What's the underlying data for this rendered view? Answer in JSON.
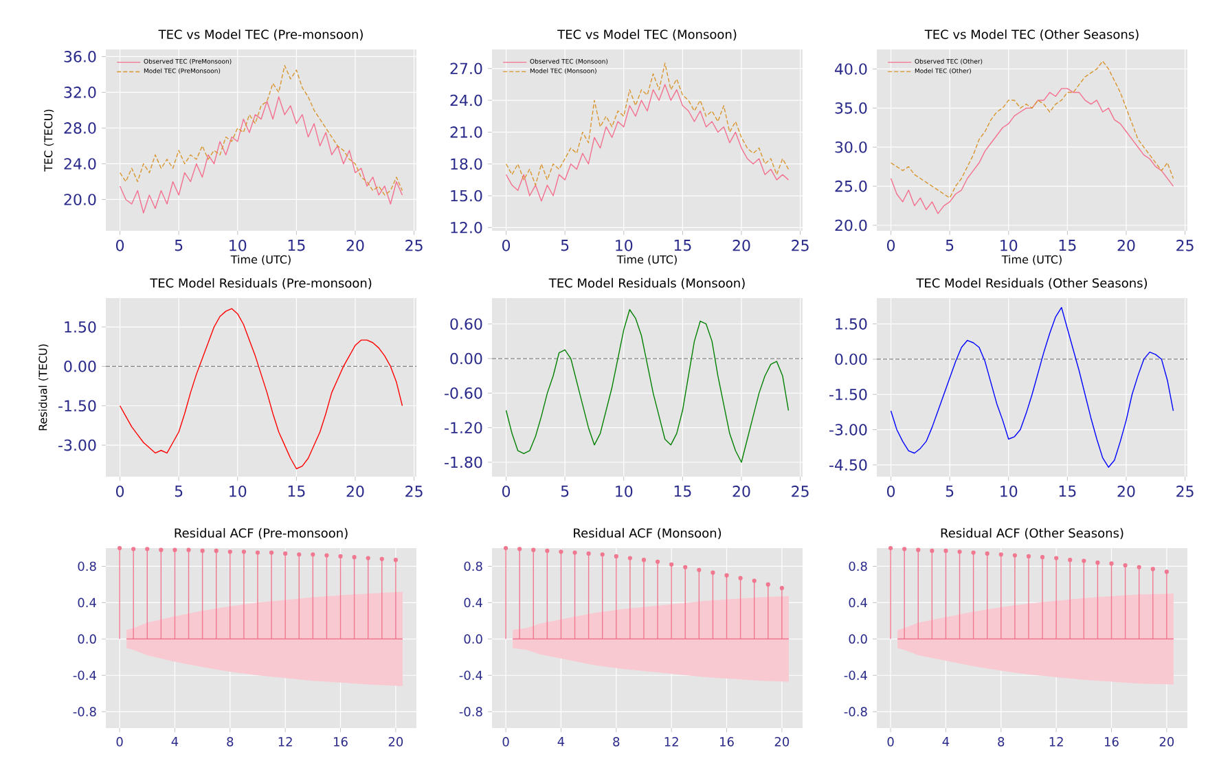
{
  "chart_data": [
    {
      "type": "line",
      "title": "TEC vs Model TEC (Pre-monsoon)",
      "xlabel": "Time (UTC)",
      "ylabel": "TEC (TECU)",
      "legend": "top left",
      "grid": true,
      "x": [
        0,
        0.5,
        1,
        1.5,
        2,
        2.5,
        3,
        3.5,
        4,
        4.5,
        5,
        5.5,
        6,
        6.5,
        7,
        7.5,
        8,
        8.5,
        9,
        9.5,
        10,
        10.5,
        11,
        11.5,
        12,
        12.5,
        13,
        13.5,
        14,
        14.5,
        15,
        15.5,
        16,
        16.5,
        17,
        17.5,
        18,
        18.5,
        19,
        19.5,
        20,
        20.5,
        21,
        21.5,
        22,
        22.5,
        23,
        23.5,
        24
      ],
      "xlim": [
        -1.2,
        25.2
      ],
      "xticks": [
        0,
        5,
        10,
        15,
        20,
        25
      ],
      "ylim": [
        16.5,
        36.8
      ],
      "yticks": [
        {
          "value": 20,
          "label": "20.0"
        },
        {
          "value": 24,
          "label": "24.0"
        },
        {
          "value": 28,
          "label": "28.0"
        },
        {
          "value": 32,
          "label": "32.0"
        },
        {
          "value": 36,
          "label": "36.0"
        }
      ],
      "series": [
        {
          "name": "Observed TEC (PreMonsoon)",
          "color": "#f4708f",
          "line_style": "solid",
          "values": [
            21.5,
            20,
            19.5,
            21,
            18.5,
            20.5,
            19,
            21,
            19.5,
            22,
            20.5,
            23,
            22,
            24,
            22.5,
            25,
            24,
            26.5,
            25,
            27,
            26.5,
            29,
            27.5,
            29.5,
            29,
            31,
            29,
            31.5,
            29.5,
            30.5,
            28.5,
            29.5,
            27,
            28.5,
            26,
            27.5,
            25,
            26,
            24,
            25.5,
            23,
            23.5,
            21.5,
            22.5,
            20.5,
            21.5,
            19.5,
            22,
            20.5
          ]
        },
        {
          "name": "Model TEC (PreMonsoon)",
          "color": "#d9952e",
          "line_style": "dashed",
          "values": [
            23,
            22,
            23.5,
            22,
            24,
            23,
            25,
            23.5,
            24.5,
            23.5,
            25.5,
            24,
            25,
            24.5,
            26,
            24.5,
            25.5,
            25,
            27,
            26.5,
            28,
            27.5,
            29.5,
            28.5,
            30.5,
            31,
            33,
            32,
            35,
            33.5,
            34.5,
            32.5,
            31.5,
            30,
            29,
            28,
            27,
            26,
            25.5,
            24.5,
            24,
            22.5,
            22,
            21,
            21.5,
            20.5,
            21,
            22.5,
            21
          ]
        }
      ]
    },
    {
      "type": "line",
      "title": "TEC vs Model TEC (Monsoon)",
      "xlabel": "Time (UTC)",
      "legend": "top left",
      "grid": true,
      "x": [
        0,
        0.5,
        1,
        1.5,
        2,
        2.5,
        3,
        3.5,
        4,
        4.5,
        5,
        5.5,
        6,
        6.5,
        7,
        7.5,
        8,
        8.5,
        9,
        9.5,
        10,
        10.5,
        11,
        11.5,
        12,
        12.5,
        13,
        13.5,
        14,
        14.5,
        15,
        15.5,
        16,
        16.5,
        17,
        17.5,
        18,
        18.5,
        19,
        19.5,
        20,
        20.5,
        21,
        21.5,
        22,
        22.5,
        23,
        23.5,
        24
      ],
      "xlim": [
        -1.2,
        25.2
      ],
      "xticks": [
        0,
        5,
        10,
        15,
        20,
        25
      ],
      "ylim": [
        11.7,
        28.8
      ],
      "yticks": [
        {
          "value": 12,
          "label": "12.0"
        },
        {
          "value": 15,
          "label": "15.0"
        },
        {
          "value": 18,
          "label": "18.0"
        },
        {
          "value": 21,
          "label": "21.0"
        },
        {
          "value": 24,
          "label": "24.0"
        },
        {
          "value": 27,
          "label": "27.0"
        }
      ],
      "series": [
        {
          "name": "Observed TEC (Monsoon)",
          "color": "#f4708f",
          "line_style": "solid",
          "values": [
            17,
            16,
            15.5,
            17,
            15,
            16,
            14.5,
            16,
            15,
            17,
            16.5,
            18,
            17.5,
            19,
            18,
            20.5,
            19.5,
            21.5,
            20.5,
            22,
            21.5,
            23.5,
            22.5,
            24,
            23,
            25,
            24,
            25.5,
            24,
            25,
            23.5,
            23,
            22,
            23,
            21.5,
            22,
            21,
            21.5,
            20,
            21,
            19.5,
            18.5,
            18,
            18.5,
            17,
            17.5,
            16.5,
            17,
            16.5
          ]
        },
        {
          "name": "Model TEC (Monsoon)",
          "color": "#d9952e",
          "line_style": "dashed",
          "values": [
            18,
            17,
            18,
            16.5,
            17.5,
            16,
            18,
            16.5,
            18,
            17.5,
            18.5,
            19.5,
            19,
            21,
            20,
            24,
            21.5,
            22.5,
            21.5,
            23,
            22.5,
            25,
            23.5,
            25,
            24.5,
            26.5,
            25,
            27.5,
            25,
            26,
            24.5,
            24,
            23,
            24,
            22.5,
            23,
            22,
            23.5,
            21,
            22,
            20.5,
            19.5,
            19,
            19.5,
            18,
            18.5,
            17,
            18.5,
            17.5
          ]
        }
      ]
    },
    {
      "type": "line",
      "title": "TEC vs Model TEC (Other Seasons)",
      "xlabel": "Time (UTC)",
      "legend": "top left",
      "grid": true,
      "x": [
        0,
        0.5,
        1,
        1.5,
        2,
        2.5,
        3,
        3.5,
        4,
        4.5,
        5,
        5.5,
        6,
        6.5,
        7,
        7.5,
        8,
        8.5,
        9,
        9.5,
        10,
        10.5,
        11,
        11.5,
        12,
        12.5,
        13,
        13.5,
        14,
        14.5,
        15,
        15.5,
        16,
        16.5,
        17,
        17.5,
        18,
        18.5,
        19,
        19.5,
        20,
        20.5,
        21,
        21.5,
        22,
        22.5,
        23,
        23.5,
        24
      ],
      "xlim": [
        -1.2,
        25.2
      ],
      "xticks": [
        0,
        5,
        10,
        15,
        20,
        25
      ],
      "ylim": [
        19.3,
        42.5
      ],
      "yticks": [
        {
          "value": 20,
          "label": "20.0"
        },
        {
          "value": 25,
          "label": "25.0"
        },
        {
          "value": 30,
          "label": "30.0"
        },
        {
          "value": 35,
          "label": "35.0"
        },
        {
          "value": 40,
          "label": "40.0"
        }
      ],
      "series": [
        {
          "name": "Observed TEC (Other)",
          "color": "#f4708f",
          "line_style": "solid",
          "values": [
            26,
            24,
            23,
            24.5,
            22.5,
            23.5,
            22,
            23,
            21.5,
            22.5,
            23,
            24,
            24.5,
            26,
            27,
            28,
            29.5,
            30.5,
            31.5,
            32.5,
            33,
            34,
            34.5,
            35,
            35,
            36,
            36,
            37,
            36.5,
            37.5,
            37.5,
            37,
            37,
            36,
            35.5,
            36,
            34.5,
            35,
            33.5,
            33,
            32,
            31,
            30,
            29,
            28.5,
            27.5,
            27,
            26,
            25
          ]
        },
        {
          "name": "Model TEC (Other)",
          "color": "#d9952e",
          "line_style": "dashed",
          "values": [
            28,
            27.5,
            27,
            27.5,
            26.5,
            26,
            25.5,
            25,
            24.5,
            24,
            23.5,
            25,
            26,
            27.5,
            29,
            31,
            32,
            33.5,
            34.5,
            35,
            36,
            36,
            35,
            35.5,
            35,
            36,
            35.5,
            34.5,
            35.5,
            36,
            37,
            37,
            38,
            39,
            39.5,
            40,
            41,
            40,
            38.5,
            37,
            35,
            33,
            31,
            30,
            29,
            28,
            27,
            28,
            26
          ]
        }
      ]
    },
    {
      "type": "line",
      "title": "TEC Model Residuals (Pre-monsoon)",
      "ylabel": "Residual (TECU)",
      "grid": true,
      "x": [
        0,
        0.5,
        1,
        1.5,
        2,
        2.5,
        3,
        3.5,
        4,
        4.5,
        5,
        5.5,
        6,
        6.5,
        7,
        7.5,
        8,
        8.5,
        9,
        9.5,
        10,
        10.5,
        11,
        11.5,
        12,
        12.5,
        13,
        13.5,
        14,
        14.5,
        15,
        15.5,
        16,
        16.5,
        17,
        17.5,
        18,
        18.5,
        19,
        19.5,
        20,
        20.5,
        21,
        21.5,
        22,
        22.5,
        23,
        23.5,
        24
      ],
      "xlim": [
        -1.2,
        25.2
      ],
      "xticks": [
        0,
        5,
        10,
        15,
        20,
        25
      ],
      "ylim": [
        -4.2,
        2.6
      ],
      "yticks": [
        {
          "value": -3,
          "label": "-3.00"
        },
        {
          "value": -1.5,
          "label": "-1.50"
        },
        {
          "value": 0,
          "label": "0.00"
        },
        {
          "value": 1.5,
          "label": "1.50"
        }
      ],
      "ref_lines": [
        {
          "axis": "y",
          "value": 0,
          "color": "#808080",
          "line_style": "dashed"
        }
      ],
      "series": [
        {
          "color": "#ff0000",
          "values": [
            -1.5,
            -1.9,
            -2.3,
            -2.6,
            -2.9,
            -3.1,
            -3.3,
            -3.2,
            -3.3,
            -2.9,
            -2.5,
            -1.8,
            -1.0,
            -0.3,
            0.3,
            0.9,
            1.5,
            1.9,
            2.1,
            2.2,
            2.0,
            1.6,
            1.0,
            0.4,
            -0.3,
            -1.0,
            -1.8,
            -2.5,
            -3.0,
            -3.5,
            -3.9,
            -3.8,
            -3.5,
            -3.0,
            -2.5,
            -1.8,
            -1.0,
            -0.5,
            0.0,
            0.4,
            0.8,
            1.0,
            1.0,
            0.9,
            0.7,
            0.4,
            0.0,
            -0.6,
            -1.5
          ]
        }
      ]
    },
    {
      "type": "line",
      "title": "TEC Model Residuals (Monsoon)",
      "grid": true,
      "x": [
        0,
        0.5,
        1,
        1.5,
        2,
        2.5,
        3,
        3.5,
        4,
        4.5,
        5,
        5.5,
        6,
        6.5,
        7,
        7.5,
        8,
        8.5,
        9,
        9.5,
        10,
        10.5,
        11,
        11.5,
        12,
        12.5,
        13,
        13.5,
        14,
        14.5,
        15,
        15.5,
        16,
        16.5,
        17,
        17.5,
        18,
        18.5,
        19,
        19.5,
        20,
        20.5,
        21,
        21.5,
        22,
        22.5,
        23,
        23.5,
        24
      ],
      "xlim": [
        -1.2,
        25.2
      ],
      "xticks": [
        0,
        5,
        10,
        15,
        20,
        25
      ],
      "ylim": [
        -2.05,
        1.05
      ],
      "yticks": [
        {
          "value": -1.8,
          "label": "-1.80"
        },
        {
          "value": -1.2,
          "label": "-1.20"
        },
        {
          "value": -0.6,
          "label": "-0.60"
        },
        {
          "value": 0,
          "label": "0.00"
        },
        {
          "value": 0.6,
          "label": "0.60"
        }
      ],
      "ref_lines": [
        {
          "axis": "y",
          "value": 0,
          "color": "#808080",
          "line_style": "dashed"
        }
      ],
      "series": [
        {
          "color": "#008000",
          "values": [
            -0.9,
            -1.3,
            -1.6,
            -1.65,
            -1.6,
            -1.35,
            -1.0,
            -0.6,
            -0.3,
            0.1,
            0.15,
            0.0,
            -0.4,
            -0.8,
            -1.2,
            -1.5,
            -1.3,
            -0.9,
            -0.5,
            0.0,
            0.5,
            0.85,
            0.7,
            0.4,
            -0.1,
            -0.6,
            -1.0,
            -1.4,
            -1.5,
            -1.3,
            -0.9,
            -0.3,
            0.3,
            0.65,
            0.6,
            0.3,
            -0.3,
            -0.8,
            -1.3,
            -1.6,
            -1.8,
            -1.4,
            -1.0,
            -0.6,
            -0.3,
            -0.1,
            -0.05,
            -0.3,
            -0.9
          ]
        }
      ]
    },
    {
      "type": "line",
      "title": "TEC Model Residuals (Other Seasons)",
      "grid": true,
      "x": [
        0,
        0.5,
        1,
        1.5,
        2,
        2.5,
        3,
        3.5,
        4,
        4.5,
        5,
        5.5,
        6,
        6.5,
        7,
        7.5,
        8,
        8.5,
        9,
        9.5,
        10,
        10.5,
        11,
        11.5,
        12,
        12.5,
        13,
        13.5,
        14,
        14.5,
        15,
        15.5,
        16,
        16.5,
        17,
        17.5,
        18,
        18.5,
        19,
        19.5,
        20,
        20.5,
        21,
        21.5,
        22,
        22.5,
        23,
        23.5,
        24
      ],
      "xlim": [
        -1.2,
        25.2
      ],
      "xticks": [
        0,
        5,
        10,
        15,
        20,
        25
      ],
      "ylim": [
        -5.0,
        2.6
      ],
      "yticks": [
        {
          "value": -4.5,
          "label": "-4.50"
        },
        {
          "value": -3,
          "label": "-3.00"
        },
        {
          "value": -1.5,
          "label": "-1.50"
        },
        {
          "value": 0,
          "label": "0.00"
        },
        {
          "value": 1.5,
          "label": "1.50"
        }
      ],
      "ref_lines": [
        {
          "axis": "y",
          "value": 0,
          "color": "#808080",
          "line_style": "dashed"
        }
      ],
      "series": [
        {
          "color": "#0000ff",
          "values": [
            -2.2,
            -3.0,
            -3.5,
            -3.9,
            -4.0,
            -3.8,
            -3.5,
            -2.9,
            -2.2,
            -1.5,
            -0.8,
            -0.1,
            0.5,
            0.8,
            0.7,
            0.5,
            -0.1,
            -1.0,
            -1.9,
            -2.6,
            -3.4,
            -3.3,
            -3.0,
            -2.3,
            -1.5,
            -0.6,
            0.3,
            1.1,
            1.8,
            2.2,
            1.3,
            0.4,
            -0.5,
            -1.5,
            -2.5,
            -3.4,
            -4.2,
            -4.6,
            -4.3,
            -3.5,
            -2.6,
            -1.5,
            -0.7,
            0.0,
            0.3,
            0.2,
            0.0,
            -0.9,
            -2.2
          ]
        }
      ]
    },
    {
      "type": "lollipop",
      "title": "Residual ACF (Pre-monsoon)",
      "grid": true,
      "x": [
        0,
        1,
        2,
        3,
        4,
        5,
        6,
        7,
        8,
        9,
        10,
        11,
        12,
        13,
        14,
        15,
        16,
        17,
        18,
        19,
        20
      ],
      "xlim": [
        -1,
        21.5
      ],
      "xticks": [
        0,
        4,
        8,
        12,
        16,
        20
      ],
      "ylim": [
        -0.98,
        1.0
      ],
      "yticks": [
        {
          "value": -0.8,
          "label": "-0.8"
        },
        {
          "value": -0.4,
          "label": "-0.4"
        },
        {
          "value": 0,
          "label": "0.0"
        },
        {
          "value": 0.4,
          "label": "0.4"
        },
        {
          "value": 0.8,
          "label": "0.8"
        }
      ],
      "series": [
        {
          "type": "line",
          "color": "#f07890",
          "x": [
            0.5,
            1,
            2,
            4,
            6,
            8,
            10,
            12,
            14,
            16,
            18,
            20.5
          ],
          "values": [
            0,
            0,
            0,
            0,
            0,
            0,
            0,
            0,
            0,
            0,
            0,
            0
          ],
          "lower": [
            -0.1,
            -0.12,
            -0.18,
            -0.25,
            -0.31,
            -0.36,
            -0.4,
            -0.43,
            -0.46,
            -0.48,
            -0.5,
            -0.52
          ],
          "upper": [
            0.1,
            0.12,
            0.18,
            0.25,
            0.31,
            0.36,
            0.4,
            0.43,
            0.46,
            0.48,
            0.5,
            0.52
          ]
        },
        {
          "color": "#f07890",
          "values": [
            1,
            0.99,
            0.99,
            0.98,
            0.98,
            0.98,
            0.97,
            0.97,
            0.96,
            0.96,
            0.95,
            0.95,
            0.94,
            0.93,
            0.93,
            0.92,
            0.91,
            0.9,
            0.89,
            0.88,
            0.87
          ]
        }
      ]
    },
    {
      "type": "lollipop",
      "title": "Residual ACF (Monsoon)",
      "grid": true,
      "x": [
        0,
        1,
        2,
        3,
        4,
        5,
        6,
        7,
        8,
        9,
        10,
        11,
        12,
        13,
        14,
        15,
        16,
        17,
        18,
        19,
        20
      ],
      "xlim": [
        -1,
        21.5
      ],
      "xticks": [
        0,
        4,
        8,
        12,
        16,
        20
      ],
      "ylim": [
        -0.98,
        1.0
      ],
      "yticks": [
        {
          "value": -0.8,
          "label": "-0.8"
        },
        {
          "value": -0.4,
          "label": "-0.4"
        },
        {
          "value": 0,
          "label": "0.0"
        },
        {
          "value": 0.4,
          "label": "0.4"
        },
        {
          "value": 0.8,
          "label": "0.8"
        }
      ],
      "series": [
        {
          "type": "line",
          "color": "#f07890",
          "x": [
            0.5,
            1.5,
            2.5,
            4.5,
            6.5,
            8.5,
            10.5,
            12.5,
            14.5,
            16.5,
            18.5,
            20.5
          ],
          "values": [
            0,
            0,
            0,
            0,
            0,
            0,
            0,
            0,
            0,
            0,
            0,
            0
          ],
          "lower": [
            -0.1,
            -0.12,
            -0.17,
            -0.23,
            -0.29,
            -0.33,
            -0.36,
            -0.39,
            -0.42,
            -0.44,
            -0.46,
            -0.47
          ],
          "upper": [
            0.1,
            0.12,
            0.17,
            0.23,
            0.29,
            0.33,
            0.36,
            0.39,
            0.42,
            0.44,
            0.46,
            0.47
          ]
        },
        {
          "color": "#f07890",
          "values": [
            1,
            0.99,
            0.98,
            0.97,
            0.96,
            0.95,
            0.94,
            0.93,
            0.91,
            0.89,
            0.87,
            0.85,
            0.82,
            0.79,
            0.76,
            0.73,
            0.7,
            0.67,
            0.64,
            0.6,
            0.56
          ]
        }
      ]
    },
    {
      "type": "lollipop",
      "title": "Residual ACF (Other Seasons)",
      "grid": true,
      "x": [
        0,
        1,
        2,
        3,
        4,
        5,
        6,
        7,
        8,
        9,
        10,
        11,
        12,
        13,
        14,
        15,
        16,
        17,
        18,
        19,
        20
      ],
      "xlim": [
        -1,
        21.5
      ],
      "xticks": [
        0,
        4,
        8,
        12,
        16,
        20
      ],
      "ylim": [
        -0.98,
        1.0
      ],
      "yticks": [
        {
          "value": -0.8,
          "label": "-0.8"
        },
        {
          "value": -0.4,
          "label": "-0.4"
        },
        {
          "value": 0,
          "label": "0.0"
        },
        {
          "value": 0.4,
          "label": "0.4"
        },
        {
          "value": 0.8,
          "label": "0.8"
        }
      ],
      "series": [
        {
          "type": "line",
          "color": "#f07890",
          "x": [
            0.5,
            1,
            2,
            4,
            6,
            8,
            10,
            12,
            14,
            16,
            18,
            20.5
          ],
          "values": [
            0,
            0,
            0,
            0,
            0,
            0,
            0,
            0,
            0,
            0,
            0,
            0
          ],
          "lower": [
            -0.1,
            -0.12,
            -0.18,
            -0.24,
            -0.3,
            -0.35,
            -0.39,
            -0.42,
            -0.45,
            -0.47,
            -0.49,
            -0.5
          ],
          "upper": [
            0.1,
            0.12,
            0.18,
            0.24,
            0.3,
            0.35,
            0.39,
            0.42,
            0.45,
            0.47,
            0.49,
            0.5
          ]
        },
        {
          "color": "#f07890",
          "values": [
            1,
            0.99,
            0.98,
            0.97,
            0.97,
            0.96,
            0.95,
            0.94,
            0.93,
            0.92,
            0.91,
            0.9,
            0.89,
            0.87,
            0.86,
            0.84,
            0.83,
            0.81,
            0.79,
            0.77,
            0.74
          ]
        }
      ]
    }
  ]
}
